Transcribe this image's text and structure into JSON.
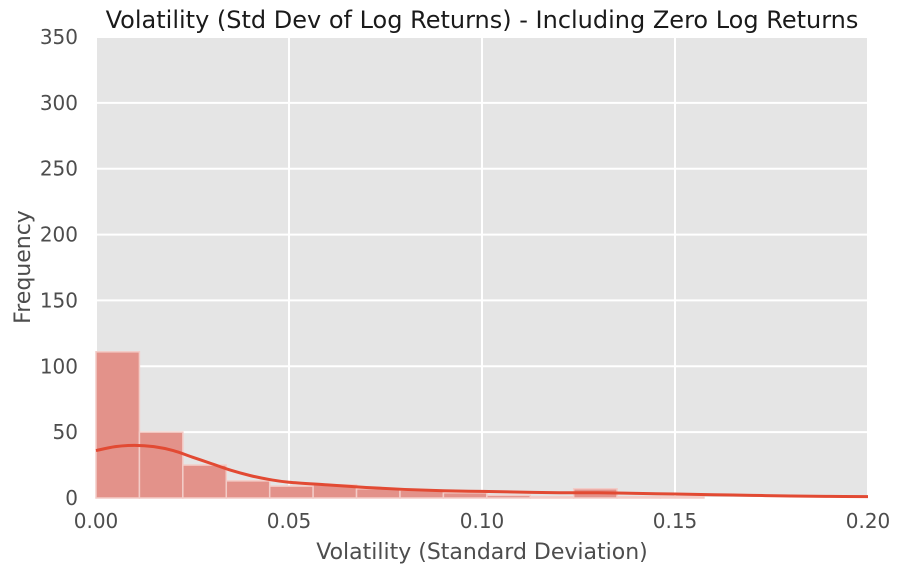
{
  "chart_data": {
    "type": "bar",
    "title": "Volatility (Std Dev of Log Returns) - Including Zero Log Returns",
    "xlabel": "Volatility (Standard Deviation)",
    "ylabel": "Frequency",
    "xlim": [
      0.0,
      0.2
    ],
    "ylim": [
      0,
      350
    ],
    "xticks": [
      "0.00",
      "0.05",
      "0.10",
      "0.15",
      "0.20"
    ],
    "yticks": [
      "0",
      "50",
      "100",
      "150",
      "200",
      "250",
      "300",
      "350"
    ],
    "grid": true,
    "bin_width": 0.01125,
    "bins": [
      {
        "x0": 0.0,
        "count": 111
      },
      {
        "x0": 0.01125,
        "count": 50
      },
      {
        "x0": 0.0225,
        "count": 25
      },
      {
        "x0": 0.03375,
        "count": 13
      },
      {
        "x0": 0.045,
        "count": 9
      },
      {
        "x0": 0.05625,
        "count": 10
      },
      {
        "x0": 0.0675,
        "count": 7
      },
      {
        "x0": 0.07875,
        "count": 6
      },
      {
        "x0": 0.09,
        "count": 4
      },
      {
        "x0": 0.10125,
        "count": 2
      },
      {
        "x0": 0.1125,
        "count": 1
      },
      {
        "x0": 0.12375,
        "count": 7
      },
      {
        "x0": 0.135,
        "count": 1
      },
      {
        "x0": 0.14625,
        "count": 1
      }
    ],
    "kde": {
      "x": [
        0.0,
        0.005,
        0.01,
        0.015,
        0.02,
        0.025,
        0.03,
        0.035,
        0.04,
        0.045,
        0.05,
        0.06,
        0.07,
        0.08,
        0.09,
        0.1,
        0.11,
        0.12,
        0.13,
        0.14,
        0.15,
        0.16,
        0.17,
        0.18,
        0.19,
        0.2
      ],
      "y": [
        36,
        39,
        40,
        39,
        36,
        31,
        26,
        21,
        17,
        14,
        12,
        10,
        8,
        6.5,
        5.5,
        5,
        4.5,
        4,
        4,
        3.5,
        3,
        2.5,
        2,
        1.5,
        1.2,
        1
      ]
    },
    "colors": {
      "bar": "#e3928a",
      "bar_edge": "#f3ccc7",
      "kde": "#e24a33",
      "background": "#e5e5e5",
      "grid": "#ffffff"
    }
  }
}
